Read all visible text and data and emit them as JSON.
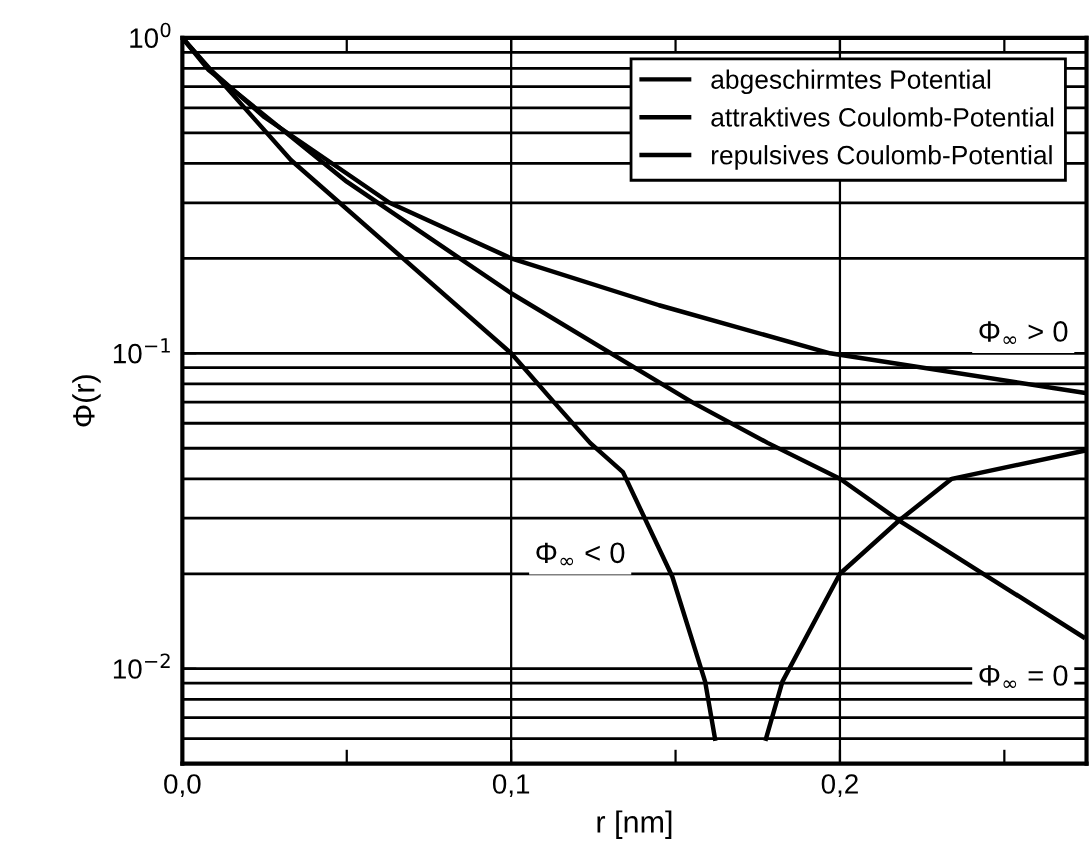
{
  "chart_data": {
    "type": "line",
    "xlabel": "r [nm]",
    "ylabel": "Φ(r)",
    "log": "y",
    "xlim": [
      0,
      0.275
    ],
    "ylim": [
      0.005,
      1
    ],
    "xticks": [
      {
        "value": 0,
        "label": "0,0"
      },
      {
        "value": 0.05,
        "label": null
      },
      {
        "value": 0.1,
        "label": "0,1"
      },
      {
        "value": 0.15,
        "label": null
      },
      {
        "value": 0.2,
        "label": "0,2"
      },
      {
        "value": 0.25,
        "label": null
      }
    ],
    "yticks": [
      {
        "value": 0.01,
        "label": "10$^{−2}$"
      },
      {
        "value": 0.1,
        "label": "10$^{−1}$"
      },
      {
        "value": 1,
        "label": "10$^{0}$"
      }
    ],
    "grid": true,
    "legend": "top right",
    "marker": "none",
    "line_style": "solid",
    "series": [
      {
        "name": "abgeschirmtes Potential",
        "color": "#000000",
        "x": [
          0,
          0.008,
          0.05,
          0.1,
          0.155,
          0.178,
          0.2,
          0.218,
          0.274
        ],
        "values": [
          1,
          0.79,
          0.35,
          0.155,
          0.07,
          0.052,
          0.04,
          0.0295,
          0.0126
        ]
      },
      {
        "name": "attraktives Coulomb-Potential",
        "color": "#000000",
        "x": [
          0,
          0.033,
          0.1,
          0.113,
          0.124,
          0.134,
          0.149,
          0.159,
          0.162,
          0.17,
          0.1775,
          0.1825,
          0.2,
          0.218,
          0.234,
          0.274
        ],
        "values": [
          1,
          0.41,
          0.1,
          0.07,
          0.052,
          0.042,
          0.0196,
          0.0091,
          0.006,
          null,
          0.006,
          0.0091,
          0.02,
          0.0295,
          0.04,
          0.049
        ]
      },
      {
        "name": "repulsives Coulomb-Potential",
        "color": "#000000",
        "x": [
          0,
          0.008,
          0.025,
          0.063,
          0.1,
          0.145,
          0.197,
          0.274
        ],
        "values": [
          1,
          0.8,
          0.56,
          0.3,
          0.2,
          0.142,
          0.1,
          0.075
        ]
      }
    ],
    "annotations": [
      "Φ$_{∞}$ > 0",
      "Φ$_{∞}$ < 0",
      "Φ$_{∞}$ = 0"
    ]
  }
}
